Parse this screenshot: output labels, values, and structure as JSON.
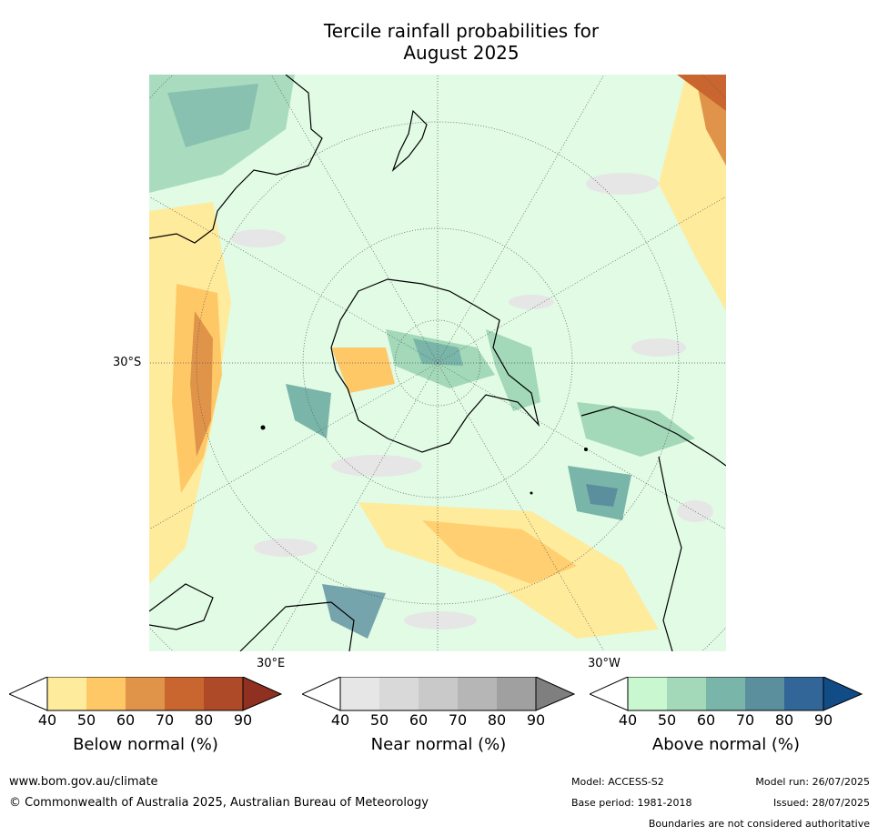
{
  "title": {
    "line1": "Tercile rainfall probabilities for",
    "line2": "August 2025"
  },
  "map": {
    "projection": "south-polar-stereographic",
    "lat_label": "30°S",
    "lon_label_east": "30°E",
    "lon_label_west": "30°W",
    "colors": {
      "land_outline": "#000000",
      "ocean_bg": "#ffffff"
    }
  },
  "colorbars": [
    {
      "name": "below",
      "label": "Below normal (%)",
      "ticks": [
        "40",
        "50",
        "60",
        "70",
        "80",
        "90"
      ],
      "colors": [
        "#ffffff",
        "#ffeb9c",
        "#ffc866",
        "#e0944a",
        "#c96630",
        "#ae4a28",
        "#8f3020"
      ]
    },
    {
      "name": "near",
      "label": "Near normal (%)",
      "ticks": [
        "40",
        "50",
        "60",
        "70",
        "80",
        "90"
      ],
      "colors": [
        "#ffffff",
        "#e6e6e6",
        "#d9d9d9",
        "#c9c9c9",
        "#b6b6b6",
        "#a0a0a0",
        "#7f7f7f"
      ]
    },
    {
      "name": "above",
      "label": "Above normal (%)",
      "ticks": [
        "40",
        "50",
        "60",
        "70",
        "80",
        "90"
      ],
      "colors": [
        "#ffffff",
        "#c9f7cf",
        "#a3d8b9",
        "#7ab5aa",
        "#5b8f9e",
        "#326698",
        "#124c87"
      ]
    }
  ],
  "footer": {
    "website": "www.bom.gov.au/climate",
    "copyright": "© Commonwealth of Australia 2025, Australian Bureau of Meteorology",
    "model": "Model: ACCESS-S2",
    "base_period": "Base period: 1981-2018",
    "model_run": "Model run: 26/07/2025",
    "issued": "Issued: 28/07/2025",
    "disclaimer": "Boundaries are not considered authoritative"
  }
}
